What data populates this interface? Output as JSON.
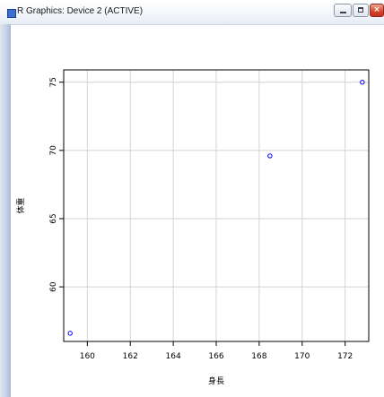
{
  "window": {
    "title": "R Graphics: Device 2 (ACTIVE)",
    "icon": "r-app-icon",
    "controls": [
      "minimize-icon",
      "maximize-icon",
      "close-icon"
    ],
    "close_glyph": "×"
  },
  "chart_data": {
    "type": "scatter",
    "xlabel": "身長",
    "ylabel": "体重",
    "xlim": [
      158.9,
      173.1
    ],
    "ylim": [
      56.0,
      75.9
    ],
    "xticks": [
      160,
      162,
      164,
      166,
      168,
      170,
      172
    ],
    "yticks": [
      60,
      65,
      70,
      75
    ],
    "grid": true,
    "marker": "open-circle",
    "point_color": "#0000ff",
    "grid_color": "#d3d3d3",
    "series": [
      {
        "points": [
          {
            "x": 159.2,
            "y": 56.6
          },
          {
            "x": 168.5,
            "y": 69.6
          },
          {
            "x": 172.8,
            "y": 75.0
          }
        ]
      }
    ]
  }
}
